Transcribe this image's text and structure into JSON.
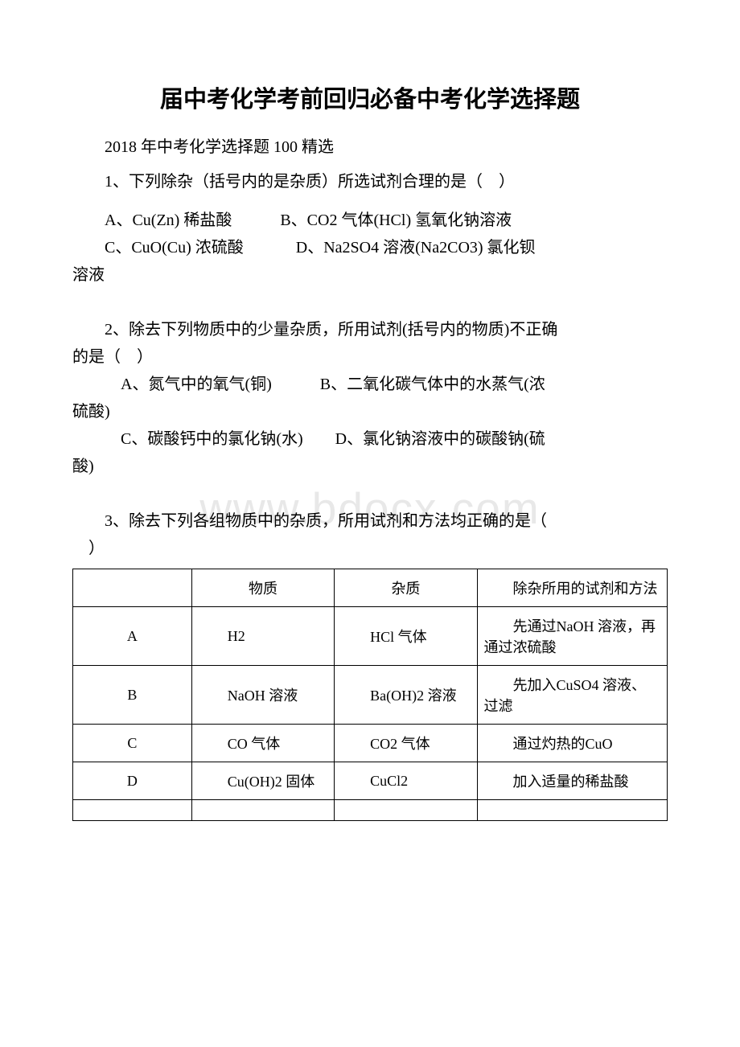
{
  "page": {
    "background_color": "#ffffff",
    "text_color": "#000000",
    "watermark_color": "#e8e8e8",
    "border_color": "#000000"
  },
  "watermark": "www.bdocx.com",
  "title": "届中考化学考前回归必备中考化学选择题",
  "subtitle": "2018 年中考化学选择题 100 精选",
  "q1": {
    "stem": "1、下列除杂（括号内的是杂质）所选试剂合理的是（　）",
    "line1_a": "A、Cu(Zn)  稀盐酸",
    "line1_b": "B、CO2 气体(HCl)  氢氧化钠溶液",
    "line2_a": "C、CuO(Cu)  浓硫酸",
    "line2_b": "D、Na2SO4 溶液(Na2CO3)  氯化钡",
    "line2_cont": "溶液"
  },
  "q2": {
    "stem_l1": "2、除去下列物质中的少量杂质，所用试剂(括号内的物质)不正确",
    "stem_l2": "的是（　）",
    "line1_a": "A、氮气中的氧气(铜)",
    "line1_b": "B、二氧化碳气体中的水蒸气(浓",
    "line1_cont": "硫酸)",
    "line2_a": "C、碳酸钙中的氯化钠(水)",
    "line2_b": "D、氯化钠溶液中的碳酸钠(硫",
    "line2_cont": "酸)"
  },
  "q3": {
    "stem_l1": "3、除去下列各组物质中的杂质，所用试剂和方法均正确的是（",
    "stem_l2": "　）",
    "table": {
      "headers": [
        "",
        "物质",
        "杂质",
        "除杂所用的试剂和方法"
      ],
      "rows": [
        [
          "A",
          "H2",
          "HCl 气体",
          "先通过NaOH 溶液，再通过浓硫酸"
        ],
        [
          "B",
          "NaOH 溶液",
          "Ba(OH)2 溶液",
          "先加入CuSO4 溶液、过滤"
        ],
        [
          "C",
          "CO 气体",
          "CO2 气体",
          "通过灼热的CuO"
        ],
        [
          "D",
          "Cu(OH)2 固体",
          "CuCl2",
          "加入适量的稀盐酸"
        ]
      ]
    }
  }
}
